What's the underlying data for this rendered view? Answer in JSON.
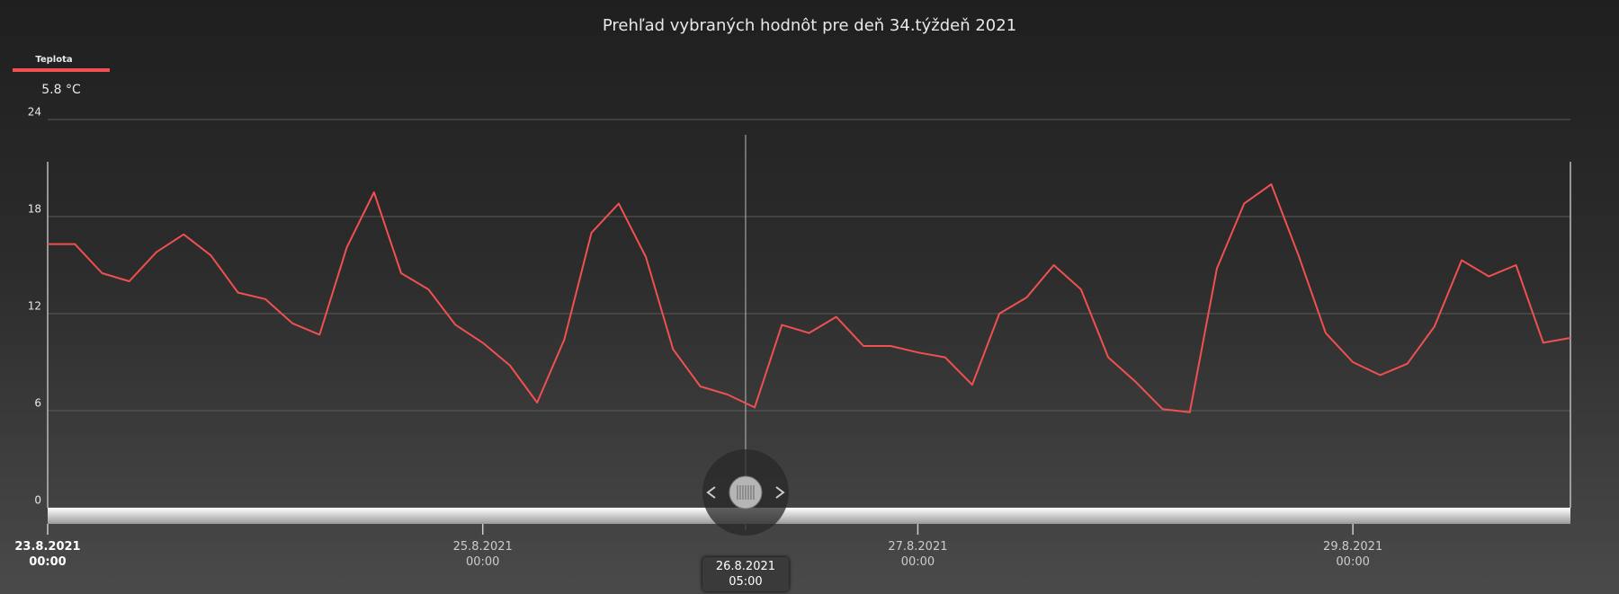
{
  "chart_data": {
    "type": "line",
    "title": "Prehľad vybraných hodnôt pre deň 34.týždeň 2021",
    "x": [
      "2021-08-23T00:00",
      "2021-08-23T03:00",
      "2021-08-23T06:00",
      "2021-08-23T09:00",
      "2021-08-23T12:00",
      "2021-08-23T15:00",
      "2021-08-23T18:00",
      "2021-08-23T21:00",
      "2021-08-24T00:00",
      "2021-08-24T03:00",
      "2021-08-24T06:00",
      "2021-08-24T09:00",
      "2021-08-24T12:00",
      "2021-08-24T15:00",
      "2021-08-24T18:00",
      "2021-08-24T21:00",
      "2021-08-25T00:00",
      "2021-08-25T03:00",
      "2021-08-25T06:00",
      "2021-08-25T09:00",
      "2021-08-25T12:00",
      "2021-08-25T15:00",
      "2021-08-25T18:00",
      "2021-08-25T21:00",
      "2021-08-26T00:00",
      "2021-08-26T03:00",
      "2021-08-26T06:00",
      "2021-08-26T09:00",
      "2021-08-26T12:00",
      "2021-08-26T15:00",
      "2021-08-26T18:00",
      "2021-08-26T21:00",
      "2021-08-27T00:00",
      "2021-08-27T03:00",
      "2021-08-27T06:00",
      "2021-08-27T09:00",
      "2021-08-27T12:00",
      "2021-08-27T15:00",
      "2021-08-27T18:00",
      "2021-08-27T21:00",
      "2021-08-28T00:00",
      "2021-08-28T03:00",
      "2021-08-28T06:00",
      "2021-08-28T09:00",
      "2021-08-28T12:00",
      "2021-08-28T15:00",
      "2021-08-28T18:00",
      "2021-08-28T21:00",
      "2021-08-29T00:00",
      "2021-08-29T03:00",
      "2021-08-29T06:00",
      "2021-08-29T09:00",
      "2021-08-29T12:00",
      "2021-08-29T15:00",
      "2021-08-29T18:00",
      "2021-08-29T21:00",
      "2021-08-30T00:00"
    ],
    "series": [
      {
        "name": "Teplota",
        "color": "#f05050",
        "legend_value": "5.8 °C",
        "values": [
          16.3,
          16.3,
          14.5,
          14.0,
          15.8,
          16.9,
          15.6,
          13.3,
          12.9,
          11.4,
          10.7,
          16.1,
          19.5,
          14.5,
          13.5,
          11.3,
          10.2,
          8.8,
          6.5,
          10.4,
          17.0,
          18.8,
          15.5,
          9.8,
          7.5,
          7.0,
          6.2,
          11.3,
          10.8,
          11.8,
          10.0,
          10.0,
          9.6,
          9.3,
          7.6,
          12.0,
          13.0,
          15.0,
          13.5,
          9.3,
          7.8,
          6.1,
          5.9,
          14.8,
          18.8,
          20.0,
          15.6,
          10.8,
          9.0,
          8.2,
          8.9,
          11.2,
          15.3,
          14.3,
          15.0,
          10.2,
          10.5
        ]
      }
    ],
    "xlim": [
      "2021-08-23T00:00",
      "2021-08-30T00:00"
    ],
    "xticks": [
      {
        "value": "2021-08-23T00:00",
        "label": "23.8.2021\n00:00"
      },
      {
        "value": "2021-08-25T00:00",
        "label": "25.8.2021\n00:00"
      },
      {
        "value": "2021-08-27T00:00",
        "label": "27.8.2021\n00:00"
      },
      {
        "value": "2021-08-29T00:00",
        "label": "29.8.2021\n00:00"
      }
    ],
    "ylim": [
      0,
      24
    ],
    "yticks": [
      0,
      6,
      12,
      18,
      24
    ],
    "grid": true,
    "cursor": {
      "x": "2021-08-26T05:00",
      "label": "26.8.2021\n05:00"
    }
  }
}
